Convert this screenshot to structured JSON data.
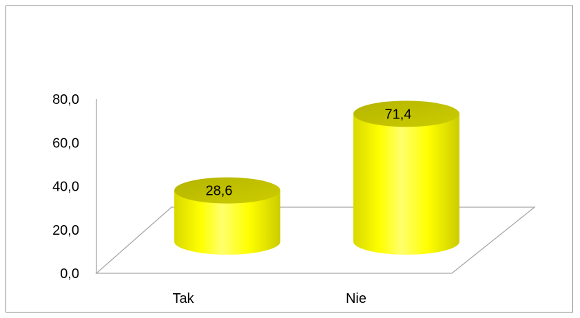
{
  "chart_data": {
    "type": "bar",
    "style": "3d-cylinder",
    "categories": [
      "Tak",
      "Nie"
    ],
    "values": [
      28.6,
      71.4
    ],
    "value_labels": [
      "28,6",
      "71,4"
    ],
    "ylim": [
      0,
      80
    ],
    "yticks": [
      0,
      20,
      40,
      60,
      80
    ],
    "ytick_labels": [
      "0,0",
      "20,0",
      "40,0",
      "60,0",
      "80,0"
    ],
    "grid": false,
    "legend": "none",
    "bar_color": "#ffff00",
    "bar_shade_color": "#c8c800"
  }
}
